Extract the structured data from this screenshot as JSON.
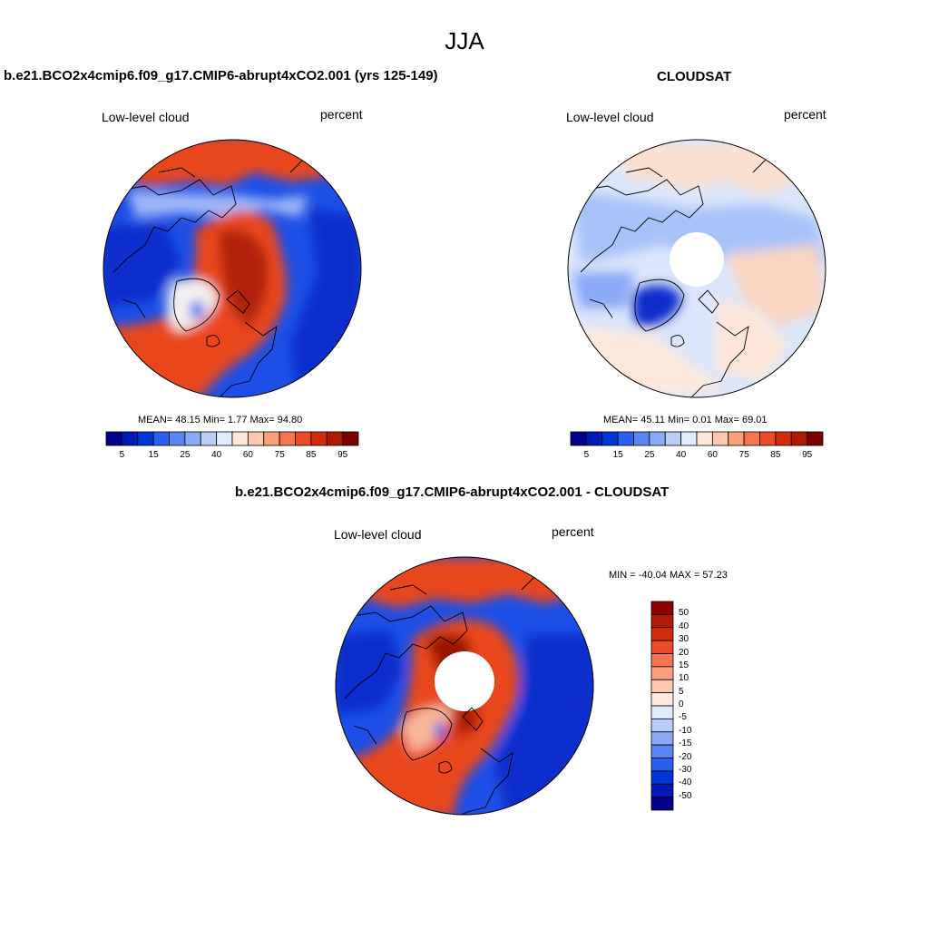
{
  "title": "JJA",
  "panels": [
    {
      "title": "b.e21.BCO2x4cmip6.f09_g17.CMIP6-abrupt4xCO2.001 (yrs 125-149)",
      "left_label": "Low-level cloud",
      "right_label": "percent",
      "stats": "MEAN=  48.15  Min=   1.77  Max=  94.80"
    },
    {
      "title": "CLOUDSAT",
      "left_label": "Low-level cloud",
      "right_label": "percent",
      "stats": "MEAN=  45.11  Min=   0.01  Max=  69.01"
    },
    {
      "title": "b.e21.BCO2x4cmip6.f09_g17.CMIP6-abrupt4xCO2.001 - CLOUDSAT",
      "left_label": "Low-level cloud",
      "right_label": "percent",
      "stats": "MIN = -40.04 MAX =  57.23"
    }
  ],
  "colorbar_horizontal": {
    "ticks": [
      "5",
      "15",
      "25",
      "40",
      "60",
      "75",
      "85",
      "95"
    ],
    "colors": [
      "#00008b",
      "#0019b8",
      "#0035d9",
      "#2a5ff0",
      "#5a85f5",
      "#8aaaf7",
      "#b8cdf9",
      "#e2ebfc",
      "#fde8dc",
      "#fcc9b0",
      "#fb9f7e",
      "#f6744f",
      "#ec4a26",
      "#d42a0c",
      "#b01a05",
      "#800000"
    ]
  },
  "colorbar_vertical": {
    "ticks": [
      "50",
      "40",
      "30",
      "20",
      "15",
      "10",
      "5",
      "0",
      "-5",
      "-10",
      "-15",
      "-20",
      "-30",
      "-40",
      "-50"
    ],
    "colors": [
      "#8b0000",
      "#b01a05",
      "#d42a0c",
      "#ec4a26",
      "#f6744f",
      "#fb9f7e",
      "#fcc9b0",
      "#fde8dc",
      "#e2ebfc",
      "#b8cdf9",
      "#8aaaf7",
      "#5a85f5",
      "#2a5ff0",
      "#0035d9",
      "#0019b8",
      "#00008b"
    ]
  }
}
